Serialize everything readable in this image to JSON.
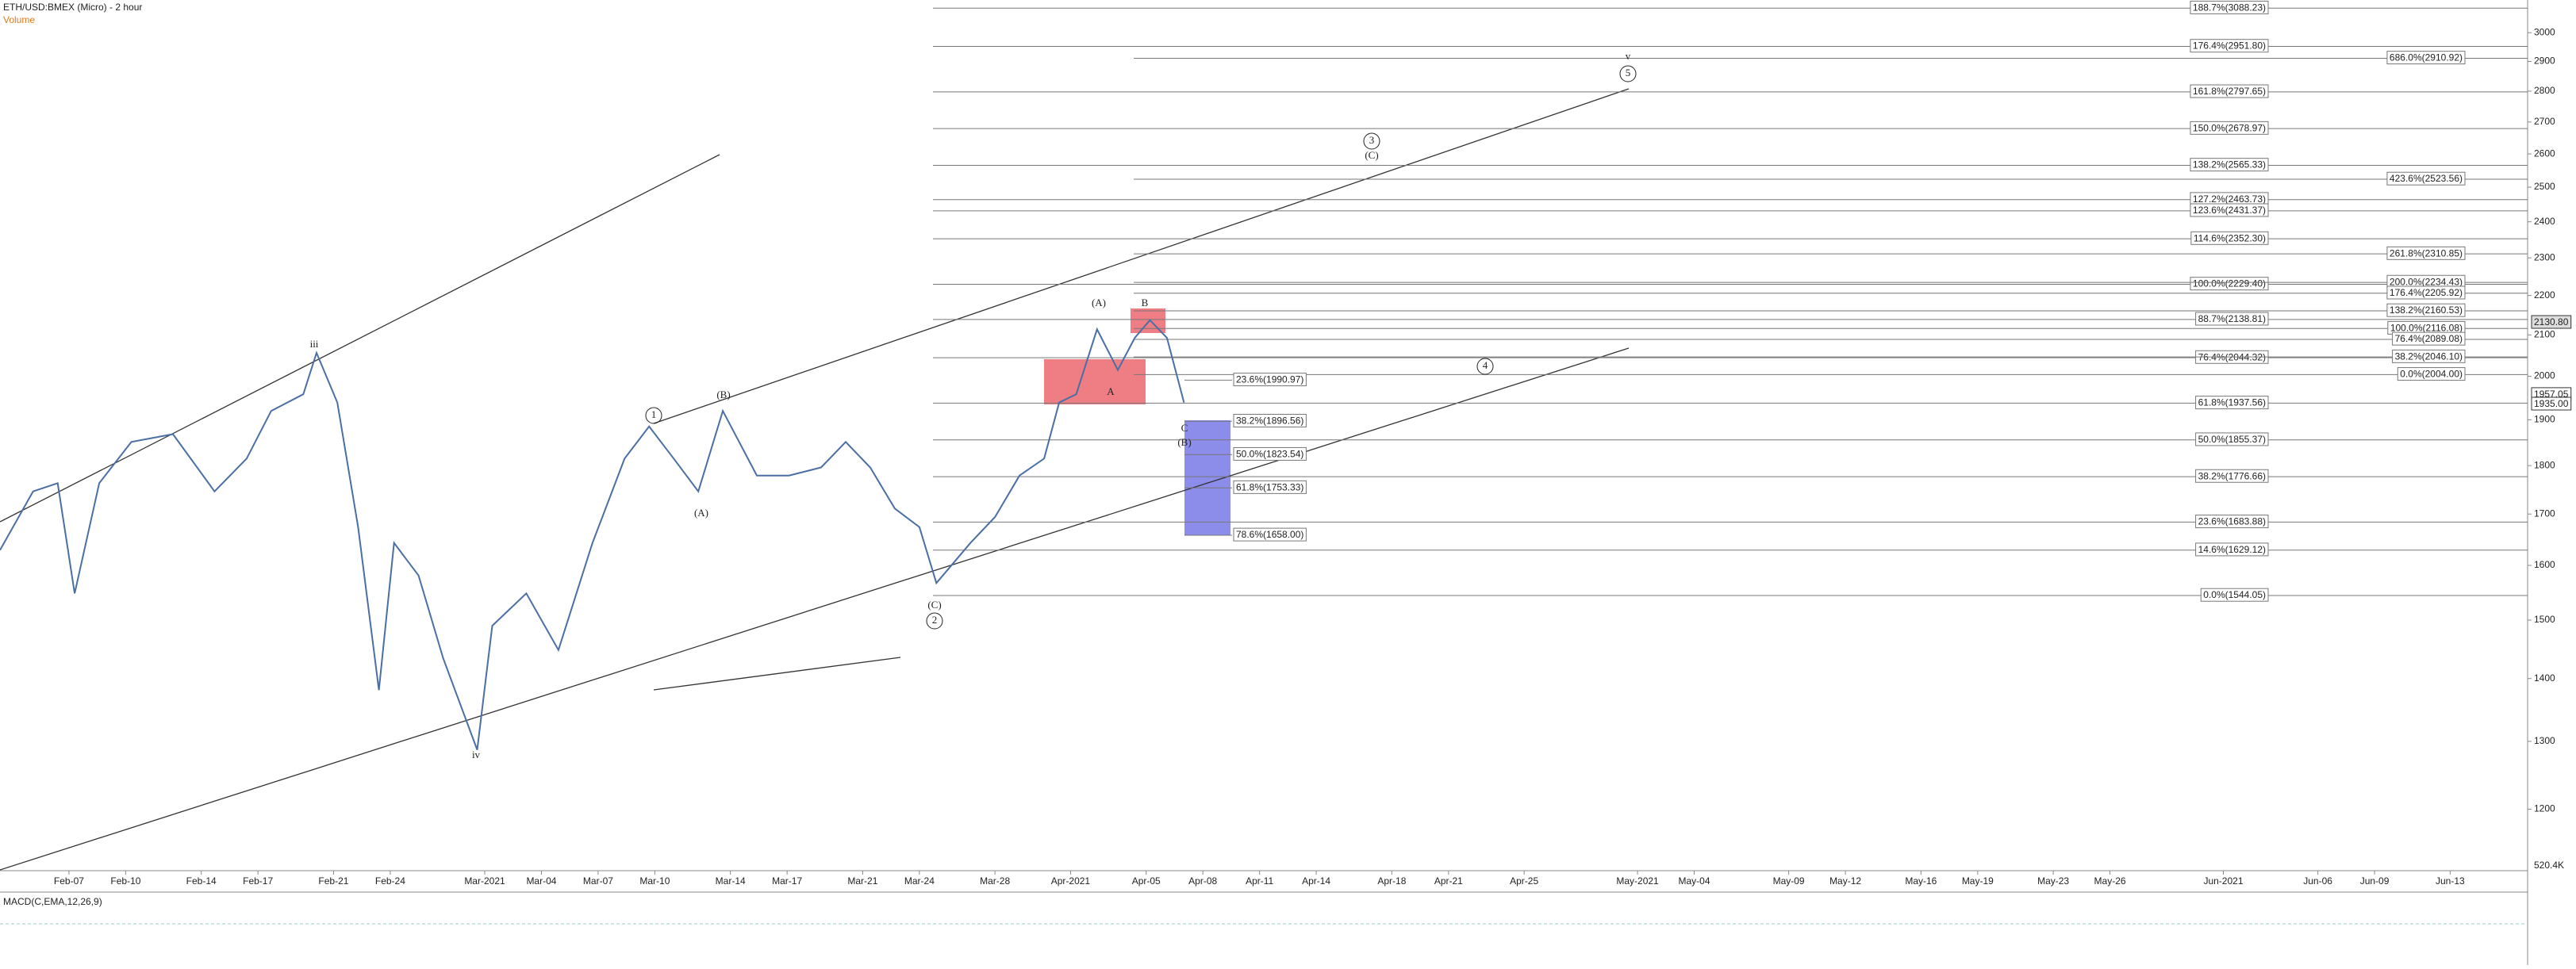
{
  "chart_data": {
    "type": "line",
    "title": "ETH/USD:BMEX (Micro) - 2 hour",
    "volume_label": "Volume",
    "macd_label": "MACD(C,EMA,12,26,9)",
    "log_scale": true,
    "ylim": [
      1116,
      3118
    ],
    "yticks": [
      1200,
      1300,
      1400,
      1500,
      1600,
      1700,
      1800,
      1900,
      2000,
      2100,
      2200,
      2300,
      2400,
      2500,
      2600,
      2700,
      2800,
      2900,
      3000
    ],
    "xlim": [
      2.35,
      136.1
    ],
    "xticks": [
      {
        "value": 6,
        "label": "Feb-07"
      },
      {
        "value": 9,
        "label": "Feb-10"
      },
      {
        "value": 13,
        "label": "Feb-14"
      },
      {
        "value": 16,
        "label": "Feb-17"
      },
      {
        "value": 20,
        "label": "Feb-21"
      },
      {
        "value": 23,
        "label": "Feb-24"
      },
      {
        "value": 28,
        "label": "Mar-2021"
      },
      {
        "value": 31,
        "label": "Mar-04"
      },
      {
        "value": 34,
        "label": "Mar-07"
      },
      {
        "value": 37,
        "label": "Mar-10"
      },
      {
        "value": 41,
        "label": "Mar-14"
      },
      {
        "value": 44,
        "label": "Mar-17"
      },
      {
        "value": 48,
        "label": "Mar-21"
      },
      {
        "value": 51,
        "label": "Mar-24"
      },
      {
        "value": 55,
        "label": "Mar-28"
      },
      {
        "value": 59,
        "label": "Apr-2021"
      },
      {
        "value": 63,
        "label": "Apr-05"
      },
      {
        "value": 66,
        "label": "Apr-08"
      },
      {
        "value": 69,
        "label": "Apr-11"
      },
      {
        "value": 72,
        "label": "Apr-14"
      },
      {
        "value": 76,
        "label": "Apr-18"
      },
      {
        "value": 79,
        "label": "Apr-21"
      },
      {
        "value": 83,
        "label": "Apr-25"
      },
      {
        "value": 89,
        "label": "May-2021"
      },
      {
        "value": 92,
        "label": "May-04"
      },
      {
        "value": 97,
        "label": "May-09"
      },
      {
        "value": 100,
        "label": "May-12"
      },
      {
        "value": 104,
        "label": "May-16"
      },
      {
        "value": 107,
        "label": "May-19"
      },
      {
        "value": 111,
        "label": "May-23"
      },
      {
        "value": 114,
        "label": "May-26"
      },
      {
        "value": 120,
        "label": "Jun-2021"
      },
      {
        "value": 125,
        "label": "Jun-06"
      },
      {
        "value": 128,
        "label": "Jun-09"
      },
      {
        "value": 132,
        "label": "Jun-13"
      }
    ],
    "series": [
      {
        "name": "ETH/USD:BMEX",
        "color": "#4a6fa5",
        "x": [
          2.35,
          4.1,
          5.4,
          6.3,
          7.6,
          9.3,
          11.5,
          13.7,
          15.4,
          16.7,
          18.4,
          19.1,
          20.2,
          21.3,
          22.4,
          23.2,
          24.5,
          25.8,
          27.6,
          28.4,
          30.2,
          31.9,
          33.7,
          35.4,
          36.7,
          38.0,
          39.3,
          40.6,
          42.4,
          44.1,
          45.8,
          47.1,
          48.4,
          49.7,
          51.0,
          51.9,
          53.7,
          55.0,
          56.3,
          57.6,
          58.4,
          59.3,
          60.4,
          61.5,
          62.4,
          63.2,
          64.1,
          65.0
        ],
        "values": [
          1629,
          1746,
          1763,
          1548,
          1763,
          1851,
          1868,
          1746,
          1815,
          1920,
          1958,
          2056,
          1939,
          1674,
          1381,
          1643,
          1581,
          1434,
          1287,
          1490,
          1548,
          1448,
          1643,
          1815,
          1885,
          1815,
          1746,
          1920,
          1779,
          1779,
          1796,
          1851,
          1796,
          1711,
          1674,
          1567,
          1643,
          1694,
          1779,
          1815,
          1939,
          1958,
          2114,
          2015,
          2093,
          2137,
          2093,
          1939
        ]
      }
    ],
    "price_labels": [
      {
        "value": 2130.8,
        "label": "2130.80"
      },
      {
        "value": 1957.05,
        "label": "1957.05"
      },
      {
        "value": 1935,
        "label": "1935.00"
      }
    ],
    "volume_axis_label": "520.4K",
    "fib_a": [
      {
        "value": 3088.23,
        "label": "188.7%(3088.23)"
      },
      {
        "value": 2951.8,
        "label": "176.4%(2951.80)"
      },
      {
        "value": 2797.65,
        "label": "161.8%(2797.65)"
      },
      {
        "value": 2678.97,
        "label": "150.0%(2678.97)"
      },
      {
        "value": 2565.33,
        "label": "138.2%(2565.33)"
      },
      {
        "value": 2463.73,
        "label": "127.2%(2463.73)"
      },
      {
        "value": 2431.37,
        "label": "123.6%(2431.37)"
      },
      {
        "value": 2352.3,
        "label": "114.6%(2352.30)"
      },
      {
        "value": 2229.4,
        "label": "100.0%(2229.40)"
      },
      {
        "value": 2138.81,
        "label": "88.7%(2138.81)"
      },
      {
        "value": 2044.32,
        "label": "76.4%(2044.32)"
      },
      {
        "value": 1937.56,
        "label": "61.8%(1937.56)"
      },
      {
        "value": 1855.37,
        "label": "50.0%(1855.37)"
      },
      {
        "value": 1776.66,
        "label": "38.2%(1776.66)"
      },
      {
        "value": 1683.88,
        "label": "23.6%(1683.88)"
      },
      {
        "value": 1629.12,
        "label": "14.6%(1629.12)"
      },
      {
        "value": 1544.05,
        "label": "0.0%(1544.05)"
      }
    ],
    "fib_b": [
      {
        "value": 2910.92,
        "label": "686.0%(2910.92)"
      },
      {
        "value": 2523.56,
        "label": "423.6%(2523.56)"
      },
      {
        "value": 2310.85,
        "label": "261.8%(2310.85)"
      },
      {
        "value": 2234.43,
        "label": "200.0%(2234.43)"
      },
      {
        "value": 2205.92,
        "label": "176.4%(2205.92)"
      },
      {
        "value": 2160.53,
        "label": "138.2%(2160.53)"
      },
      {
        "value": 2116.08,
        "label": "100.0%(2116.08)"
      },
      {
        "value": 2089.08,
        "label": "76.4%(2089.08)"
      },
      {
        "value": 2046.1,
        "label": "38.2%(2046.10)"
      },
      {
        "value": 2004,
        "label": "0.0%(2004.00)"
      }
    ],
    "fib_c": [
      {
        "value": 1990.97,
        "label": "23.6%(1990.97)"
      },
      {
        "value": 1896.56,
        "label": "38.2%(1896.56)"
      },
      {
        "value": 1823.54,
        "label": "50.0%(1823.54)"
      },
      {
        "value": 1753.33,
        "label": "61.8%(1753.33)"
      },
      {
        "value": 1658,
        "label": "78.6%(1658.00)"
      }
    ],
    "wave_labels": [
      "iii",
      "iv",
      "1",
      "(B)",
      "(A)",
      "(C)",
      "2",
      "(A)",
      "A",
      "B",
      "C",
      "(B)",
      "3",
      "(C)",
      "4",
      "5",
      "v"
    ]
  }
}
